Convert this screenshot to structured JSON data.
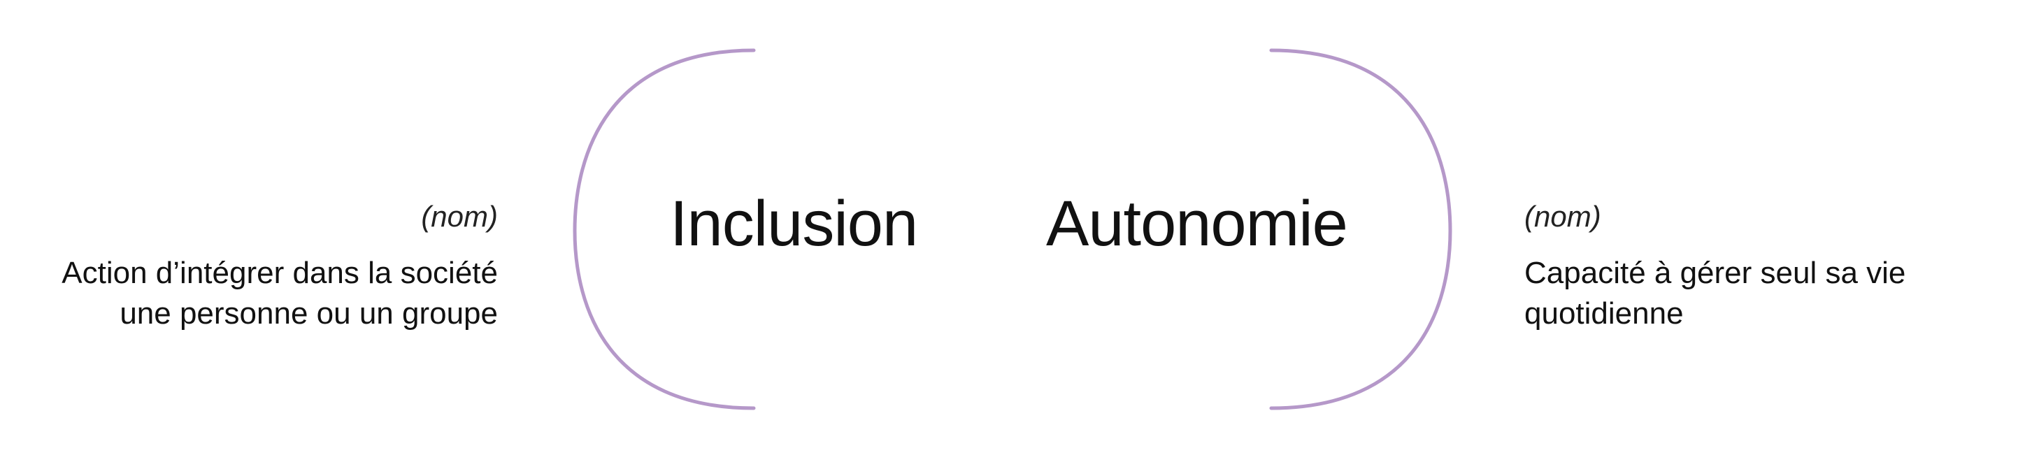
{
  "colors": {
    "arc": "#b598c9",
    "text": "#111111"
  },
  "left_term": {
    "word": "Inclusion",
    "pos": "(nom)",
    "definition_lines": [
      "Action d’intégrer dans la société",
      "une personne ou un groupe"
    ]
  },
  "right_term": {
    "word": "Autonomie",
    "pos": "(nom)",
    "definition_lines": [
      "Capacité à gérer seul sa vie",
      "quotidienne"
    ]
  }
}
